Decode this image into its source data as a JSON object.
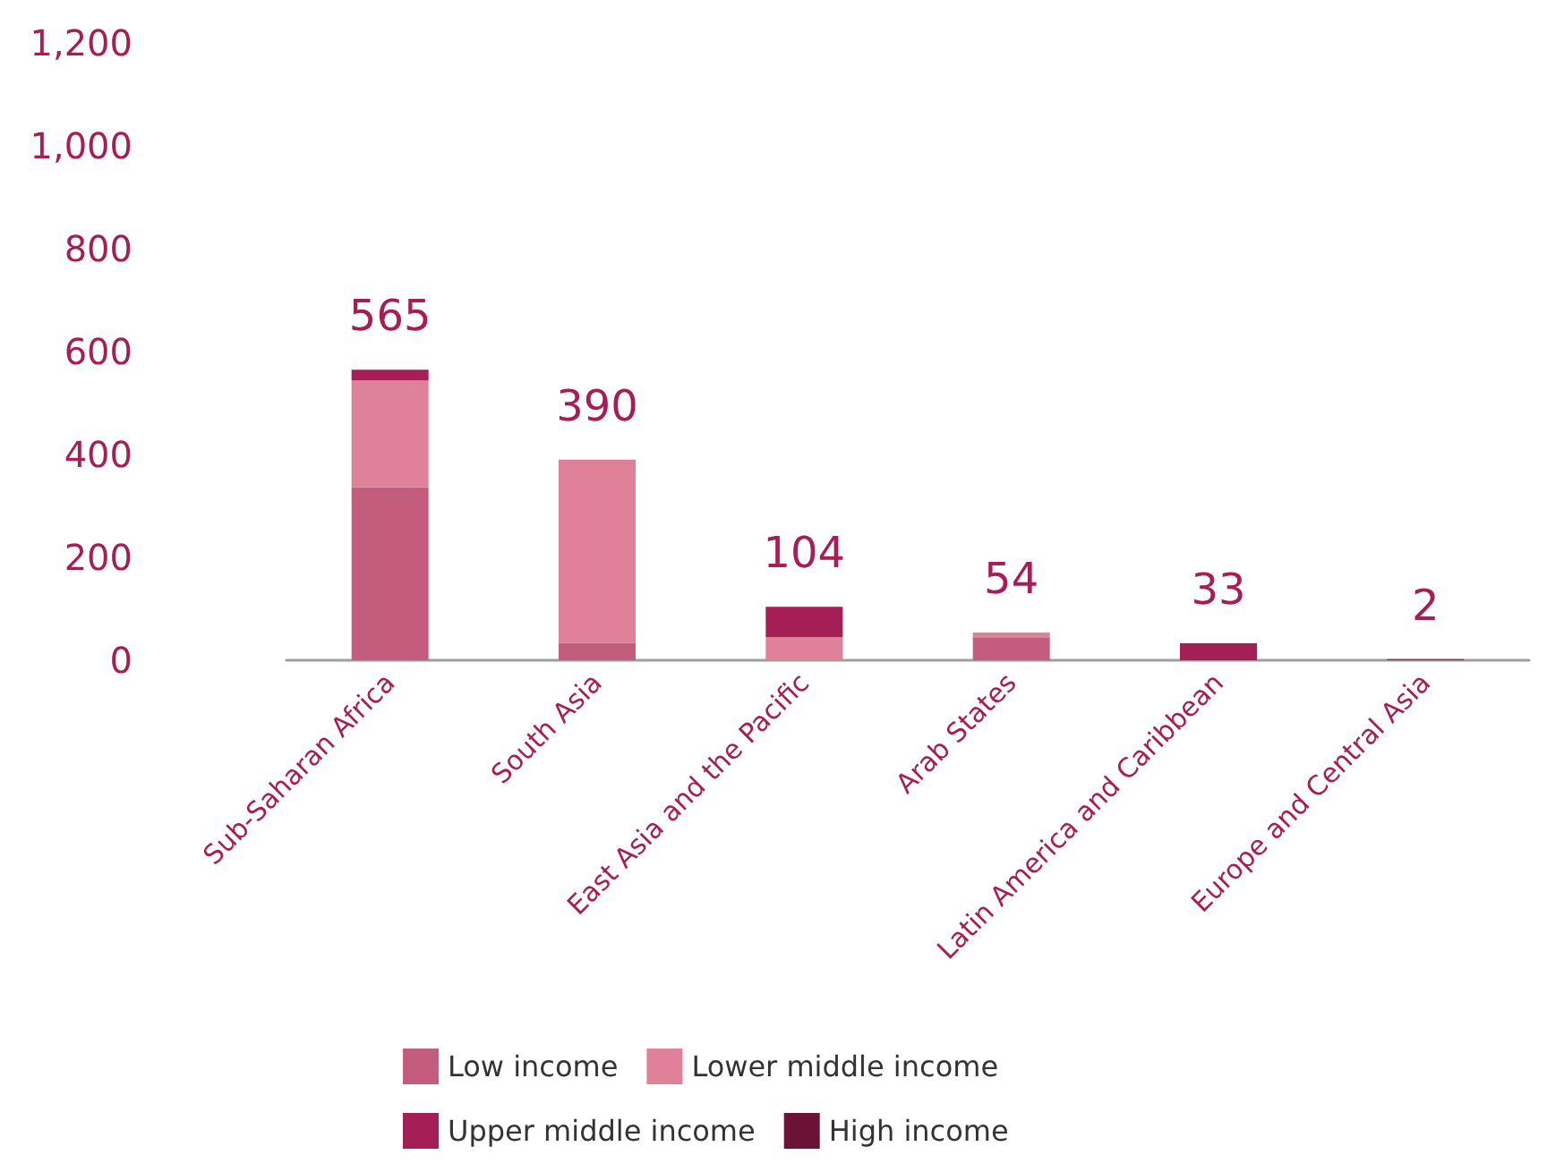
{
  "chart_data": {
    "type": "bar",
    "stacked": true,
    "categories": [
      "Sub-Saharan Africa",
      "South Asia",
      "East Asia and the Pacific",
      "Arab States",
      "Latin America and Caribbean",
      "Europe and Central Asia"
    ],
    "series": [
      {
        "name": "Low income",
        "color": "#c45c7e",
        "values": [
          336,
          34,
          null,
          45,
          null,
          null
        ]
      },
      {
        "name": "Lower middle income",
        "color": "#de8199",
        "values": [
          208,
          356,
          45,
          9,
          null,
          null
        ]
      },
      {
        "name": "Upper middle income",
        "color": "#a51e55",
        "values": [
          21,
          null,
          59,
          null,
          33,
          2
        ]
      },
      {
        "name": "High income",
        "color": "#6d1237",
        "values": [
          null,
          null,
          null,
          null,
          null,
          null
        ]
      }
    ],
    "totals": [
      "565",
      "390",
      "104",
      "54",
      "33",
      "2"
    ],
    "ylim": [
      0,
      1200
    ],
    "yticks": [
      0,
      200,
      400,
      600,
      800,
      {
        "value": 1000,
        "label": "1,000"
      },
      {
        "value": 1200,
        "label": "1,200"
      }
    ],
    "grid": false,
    "legend": "bottom"
  }
}
